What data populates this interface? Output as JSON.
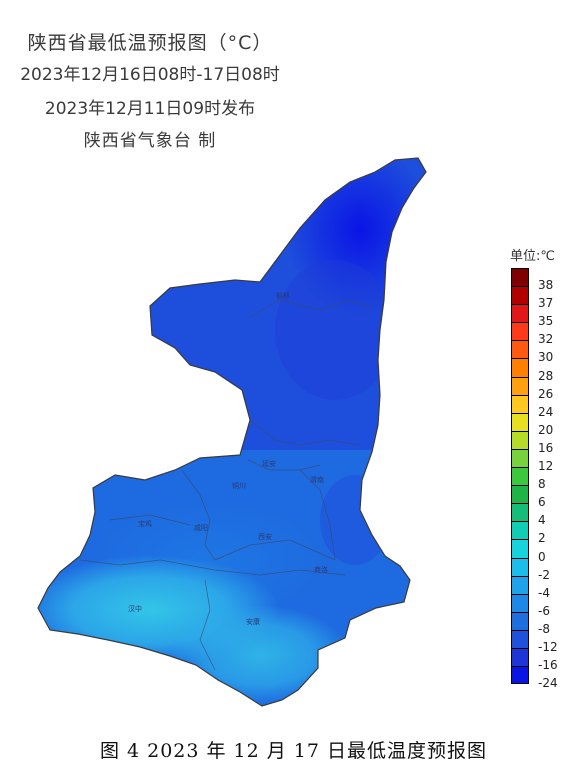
{
  "header": {
    "title": "陕西省最低温预报图（°C）",
    "period": "2023年12月16日08时-17日08时",
    "issued": "2023年12月11日09时发布",
    "issuer": "陕西省气象台 制"
  },
  "legend": {
    "unit": "单位:℃",
    "labels": [
      "38",
      "37",
      "35",
      "32",
      "30",
      "28",
      "26",
      "24",
      "20",
      "16",
      "12",
      "8",
      "6",
      "4",
      "2",
      "0",
      "-2",
      "-4",
      "-6",
      "-8",
      "-12",
      "-16",
      "-24"
    ],
    "colors": [
      "#7f0000",
      "#b00000",
      "#e01818",
      "#ff3a1a",
      "#ff5a10",
      "#ff8000",
      "#ffa010",
      "#ffc820",
      "#e6e020",
      "#b4dc28",
      "#78d23c",
      "#3cc83c",
      "#1eb446",
      "#14be78",
      "#10cdb4",
      "#18d2dc",
      "#1cbde8",
      "#1ea2ea",
      "#1e88e6",
      "#1e6ee0",
      "#1e52dc",
      "#1e36d8",
      "#0a14e6"
    ]
  },
  "cities": [
    {
      "name": "榆林"
    },
    {
      "name": "延安"
    },
    {
      "name": "铜川"
    },
    {
      "name": "渭南"
    },
    {
      "name": "宝鸡"
    },
    {
      "name": "咸阳"
    },
    {
      "name": "西安"
    },
    {
      "name": "商洛"
    },
    {
      "name": "汉中"
    },
    {
      "name": "安康"
    }
  ],
  "caption": "图 4 2023 年 12 月 17 日最低温度预报图"
}
